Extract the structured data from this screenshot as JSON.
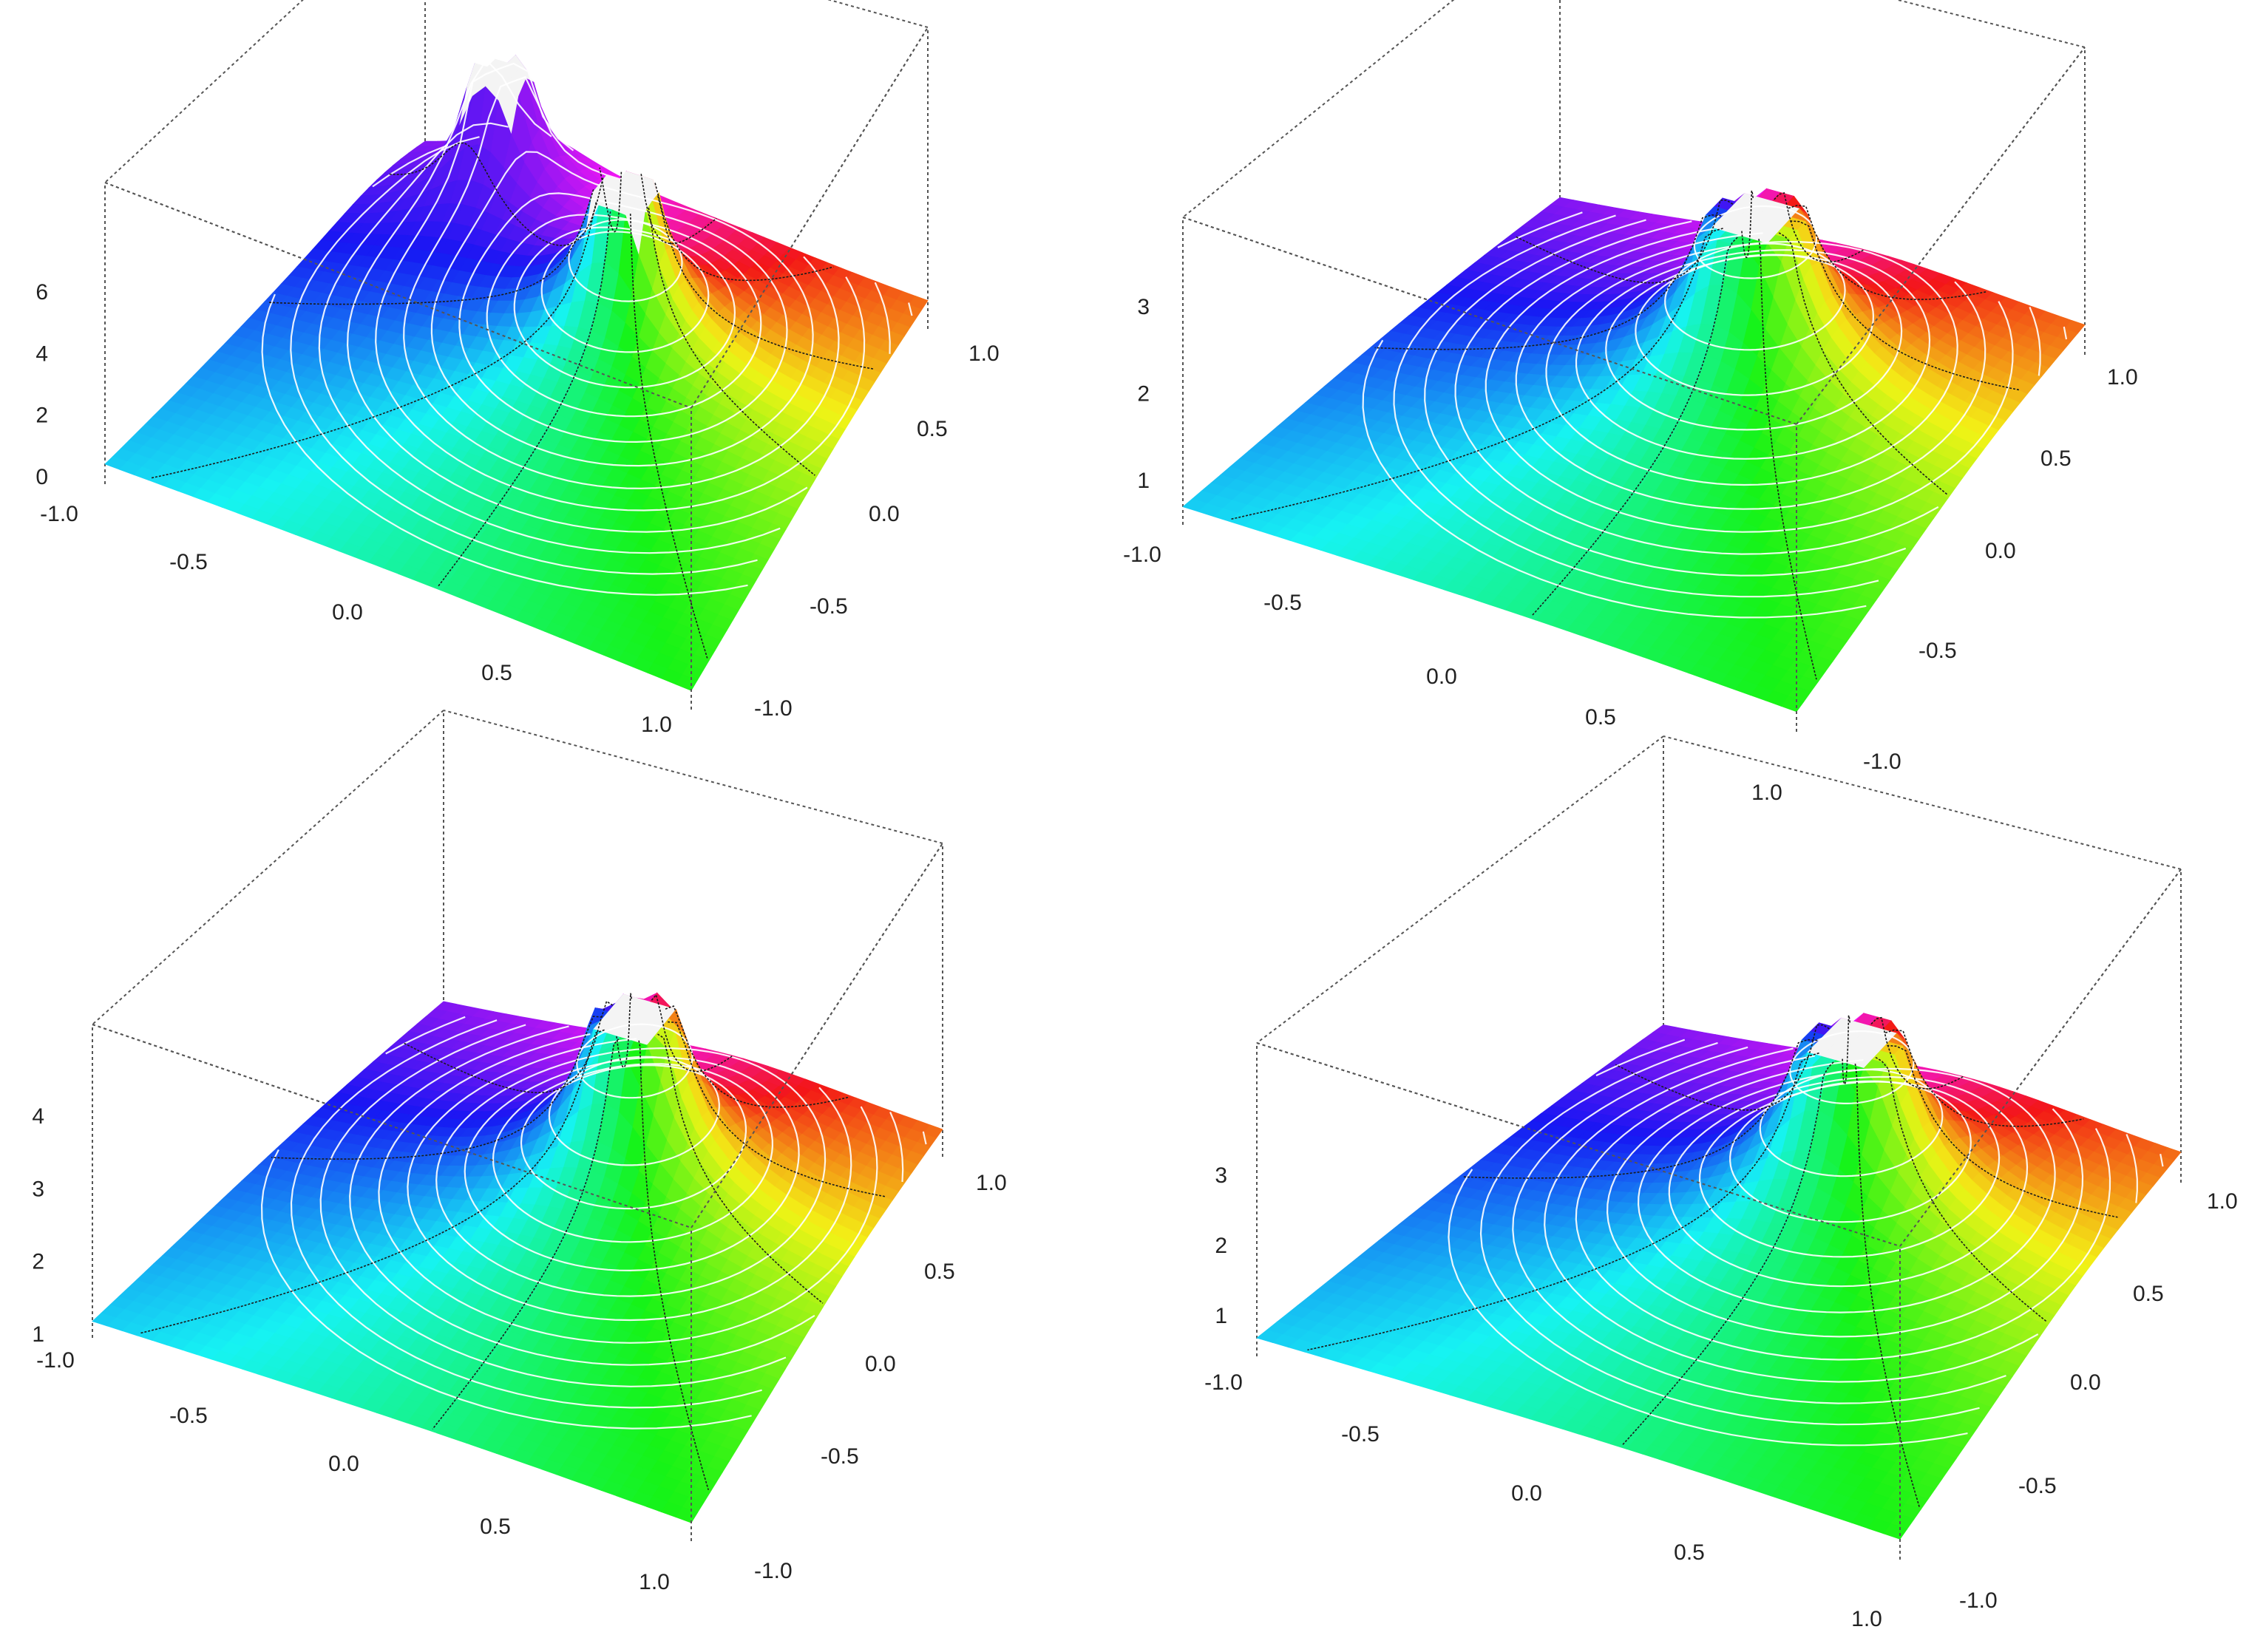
{
  "chart_data": [
    {
      "type": "surface3d",
      "title": "",
      "x_ticks": [
        "-1.0",
        "-0.5",
        "0.0",
        "0.5",
        "1.0"
      ],
      "y_ticks": [
        "-1.0",
        "-0.5",
        "0.0",
        "0.5",
        "1.0"
      ],
      "z_ticks": [
        "0",
        "2",
        "4",
        "6"
      ],
      "xlim": [
        -1,
        1
      ],
      "ylim": [
        -1,
        1
      ],
      "zlim": [
        0,
        6
      ],
      "singularities": [
        {
          "x": 0.15,
          "y": 0.35
        },
        {
          "x": -0.55,
          "y": 0.75
        }
      ],
      "grid": false
    },
    {
      "type": "surface3d",
      "title": "",
      "x_ticks": [
        "-1.0",
        "-0.5",
        "0.0",
        "0.5",
        "1.0"
      ],
      "y_ticks": [
        "-1.0",
        "-0.5",
        "0.0",
        "0.5",
        "1.0"
      ],
      "z_ticks": [
        "1",
        "2",
        "3"
      ],
      "xlim": [
        -1,
        1
      ],
      "ylim": [
        -1,
        1
      ],
      "zlim": [
        0,
        3.6
      ],
      "singularities": [
        {
          "x": 0.15,
          "y": 0.35
        }
      ],
      "grid": false
    },
    {
      "type": "surface3d",
      "title": "",
      "x_ticks": [
        "-1.0",
        "-0.5",
        "0.0",
        "0.5",
        "1.0"
      ],
      "y_ticks": [
        "-1.0",
        "-0.5",
        "0.0",
        "0.5",
        "1.0"
      ],
      "z_ticks": [
        "1",
        "2",
        "3",
        "4"
      ],
      "xlim": [
        -1,
        1
      ],
      "ylim": [
        -1,
        1
      ],
      "zlim": [
        0,
        4
      ],
      "singularities": [
        {
          "x": 0.15,
          "y": 0.35
        }
      ],
      "grid": false
    },
    {
      "type": "surface3d",
      "title": "",
      "x_ticks": [
        "-1.0",
        "-0.5",
        "0.0",
        "0.5",
        "1.0"
      ],
      "y_ticks": [
        "-1.0",
        "-0.5",
        "0.0",
        "0.5",
        "1.0"
      ],
      "z_ticks": [
        "1",
        "2",
        "3"
      ],
      "xlim": [
        -1,
        1
      ],
      "ylim": [
        -1,
        1
      ],
      "zlim": [
        0,
        3.6
      ],
      "singularities": [
        {
          "x": 0.15,
          "y": 0.35
        }
      ],
      "grid": false
    }
  ]
}
